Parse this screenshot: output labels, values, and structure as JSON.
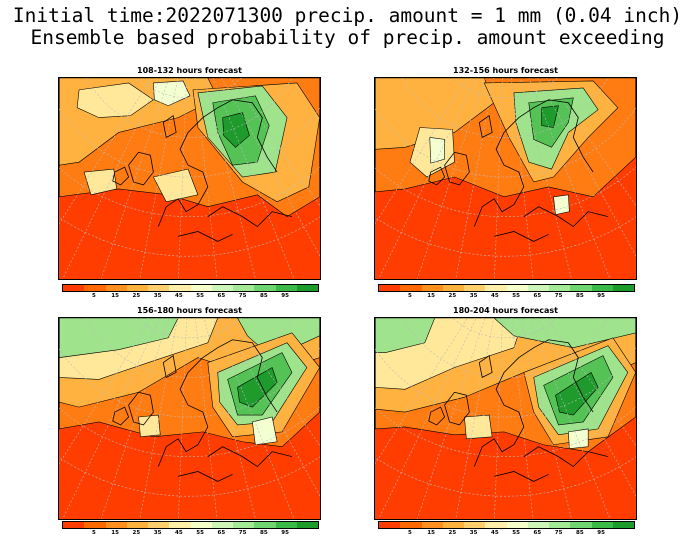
{
  "title": {
    "line1": "Initial time:2022071300 precip. amount = 1 mm (0.04 inch)",
    "line2": "Ensemble based probability of precip. amount exceeding"
  },
  "panels": [
    {
      "title": "108-132 hours forecast"
    },
    {
      "title": "132-156 hours forecast"
    },
    {
      "title": "156-180 hours forecast"
    },
    {
      "title": "180-204 hours forecast"
    }
  ],
  "colorbar": {
    "colors": [
      "#ff3d00",
      "#ff6a00",
      "#ff8f1f",
      "#ffb13d",
      "#ffcf6e",
      "#ffefa8",
      "#f5ffc8",
      "#cdf5b8",
      "#a3ea96",
      "#6fd66f",
      "#3cba47",
      "#1c9c2a"
    ],
    "labels": [
      "5",
      "15",
      "25",
      "35",
      "45",
      "55",
      "65",
      "75",
      "85",
      "95"
    ]
  },
  "palette": {
    "red": "#ff3d00",
    "orange": "#ff7c12",
    "light_orange": "#ffb23f",
    "yellow": "#ffe89a",
    "pale": "#f3ffd0",
    "light_green": "#9fe38c",
    "green": "#55c255",
    "dark_green": "#1f9a2c"
  }
}
